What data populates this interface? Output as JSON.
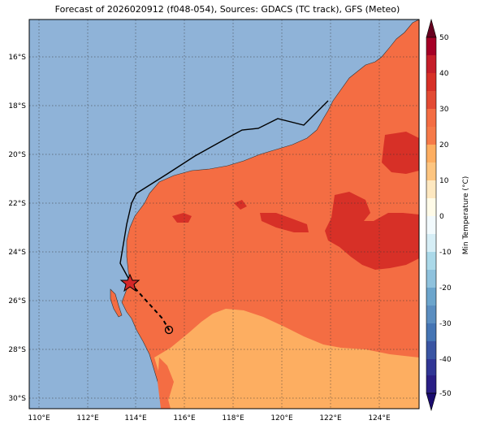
{
  "title": "Forecast of 2026020912 (f048-054), Sources: GDACS (TC track), GFS (Meteo)",
  "lat_labels": [
    "16°S",
    "18°S",
    "20°S",
    "22°S",
    "24°S",
    "26°S",
    "28°S",
    "30°S"
  ],
  "lon_labels": [
    "110°E",
    "112°E",
    "114°E",
    "116°E",
    "118°E",
    "120°E",
    "122°E",
    "124°E"
  ],
  "colorbar": {
    "label": "Min Temperature (°C)",
    "ticks": [
      "50",
      "40",
      "30",
      "20",
      "10",
      "0",
      "-10",
      "-20",
      "-30",
      "-40",
      "-50"
    ]
  },
  "colors": {
    "ocean": "#8fb3d8",
    "land_20_30": "#f46d43",
    "land_10_20": "#fdae61",
    "land_30_40": "#d73027",
    "track": "#000000"
  },
  "track": {
    "observed_marker": "star",
    "forecast_marker": "circle"
  }
}
